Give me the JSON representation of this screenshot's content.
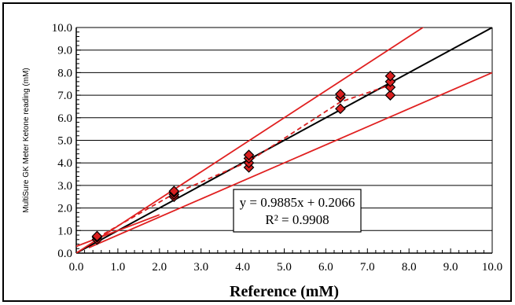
{
  "chart_data": {
    "type": "scatter",
    "xlabel": "Reference (mM)",
    "ylabel": "MultiSure GK Meter Ketone reading (mM)",
    "xlim": [
      0.0,
      10.0
    ],
    "ylim": [
      0.0,
      10.0
    ],
    "x_ticks": [
      "0.0",
      "1.0",
      "2.0",
      "3.0",
      "4.0",
      "5.0",
      "6.0",
      "7.0",
      "8.0",
      "9.0",
      "10.0"
    ],
    "y_ticks": [
      "0.0",
      "1.0",
      "2.0",
      "3.0",
      "4.0",
      "5.0",
      "6.0",
      "7.0",
      "8.0",
      "9.0",
      "10.0"
    ],
    "grid": "horizontal",
    "series": [
      {
        "marker": "diamond",
        "color": "#d92020",
        "points": [
          [
            0.5,
            0.6
          ],
          [
            0.5,
            0.7
          ],
          [
            0.5,
            0.75
          ],
          [
            2.35,
            2.5
          ],
          [
            2.35,
            2.6
          ],
          [
            2.35,
            2.7
          ],
          [
            2.35,
            2.75
          ],
          [
            4.15,
            3.8
          ],
          [
            4.15,
            4.0
          ],
          [
            4.15,
            4.2
          ],
          [
            4.15,
            4.35
          ],
          [
            6.35,
            6.4
          ],
          [
            6.35,
            6.9
          ],
          [
            6.35,
            7.05
          ],
          [
            7.55,
            7.0
          ],
          [
            7.55,
            7.35
          ],
          [
            7.55,
            7.6
          ],
          [
            7.55,
            7.85
          ]
        ]
      }
    ],
    "lines": [
      {
        "kind": "identity",
        "color": "#000000",
        "dash": "solid",
        "slope": 1.0,
        "intercept": 0.0
      },
      {
        "kind": "fit",
        "color": "#d92020",
        "dash": "dashed",
        "points": [
          [
            0.5,
            0.68
          ],
          [
            2.35,
            2.63
          ],
          [
            4.15,
            4.07
          ],
          [
            6.35,
            6.7
          ],
          [
            7.55,
            7.45
          ]
        ]
      },
      {
        "kind": "upper-bound",
        "color": "#e02020",
        "dash": "solid",
        "slope": 1.2,
        "intercept": 0.0,
        "x_start": 0.0
      },
      {
        "kind": "lower-bound",
        "color": "#e02020",
        "dash": "solid",
        "slope": 0.8,
        "intercept": 0.0,
        "x_start": 0.3
      },
      {
        "kind": "upper-bound-low",
        "color": "#e02020",
        "dash": "solid",
        "slope": 0.7,
        "intercept": 0.3,
        "x_start": 0.0,
        "x_end": 2.0
      }
    ],
    "annotation": {
      "equation": "y = 0.9885x + 0.2066",
      "r_squared": "R² = 0.9908"
    }
  }
}
